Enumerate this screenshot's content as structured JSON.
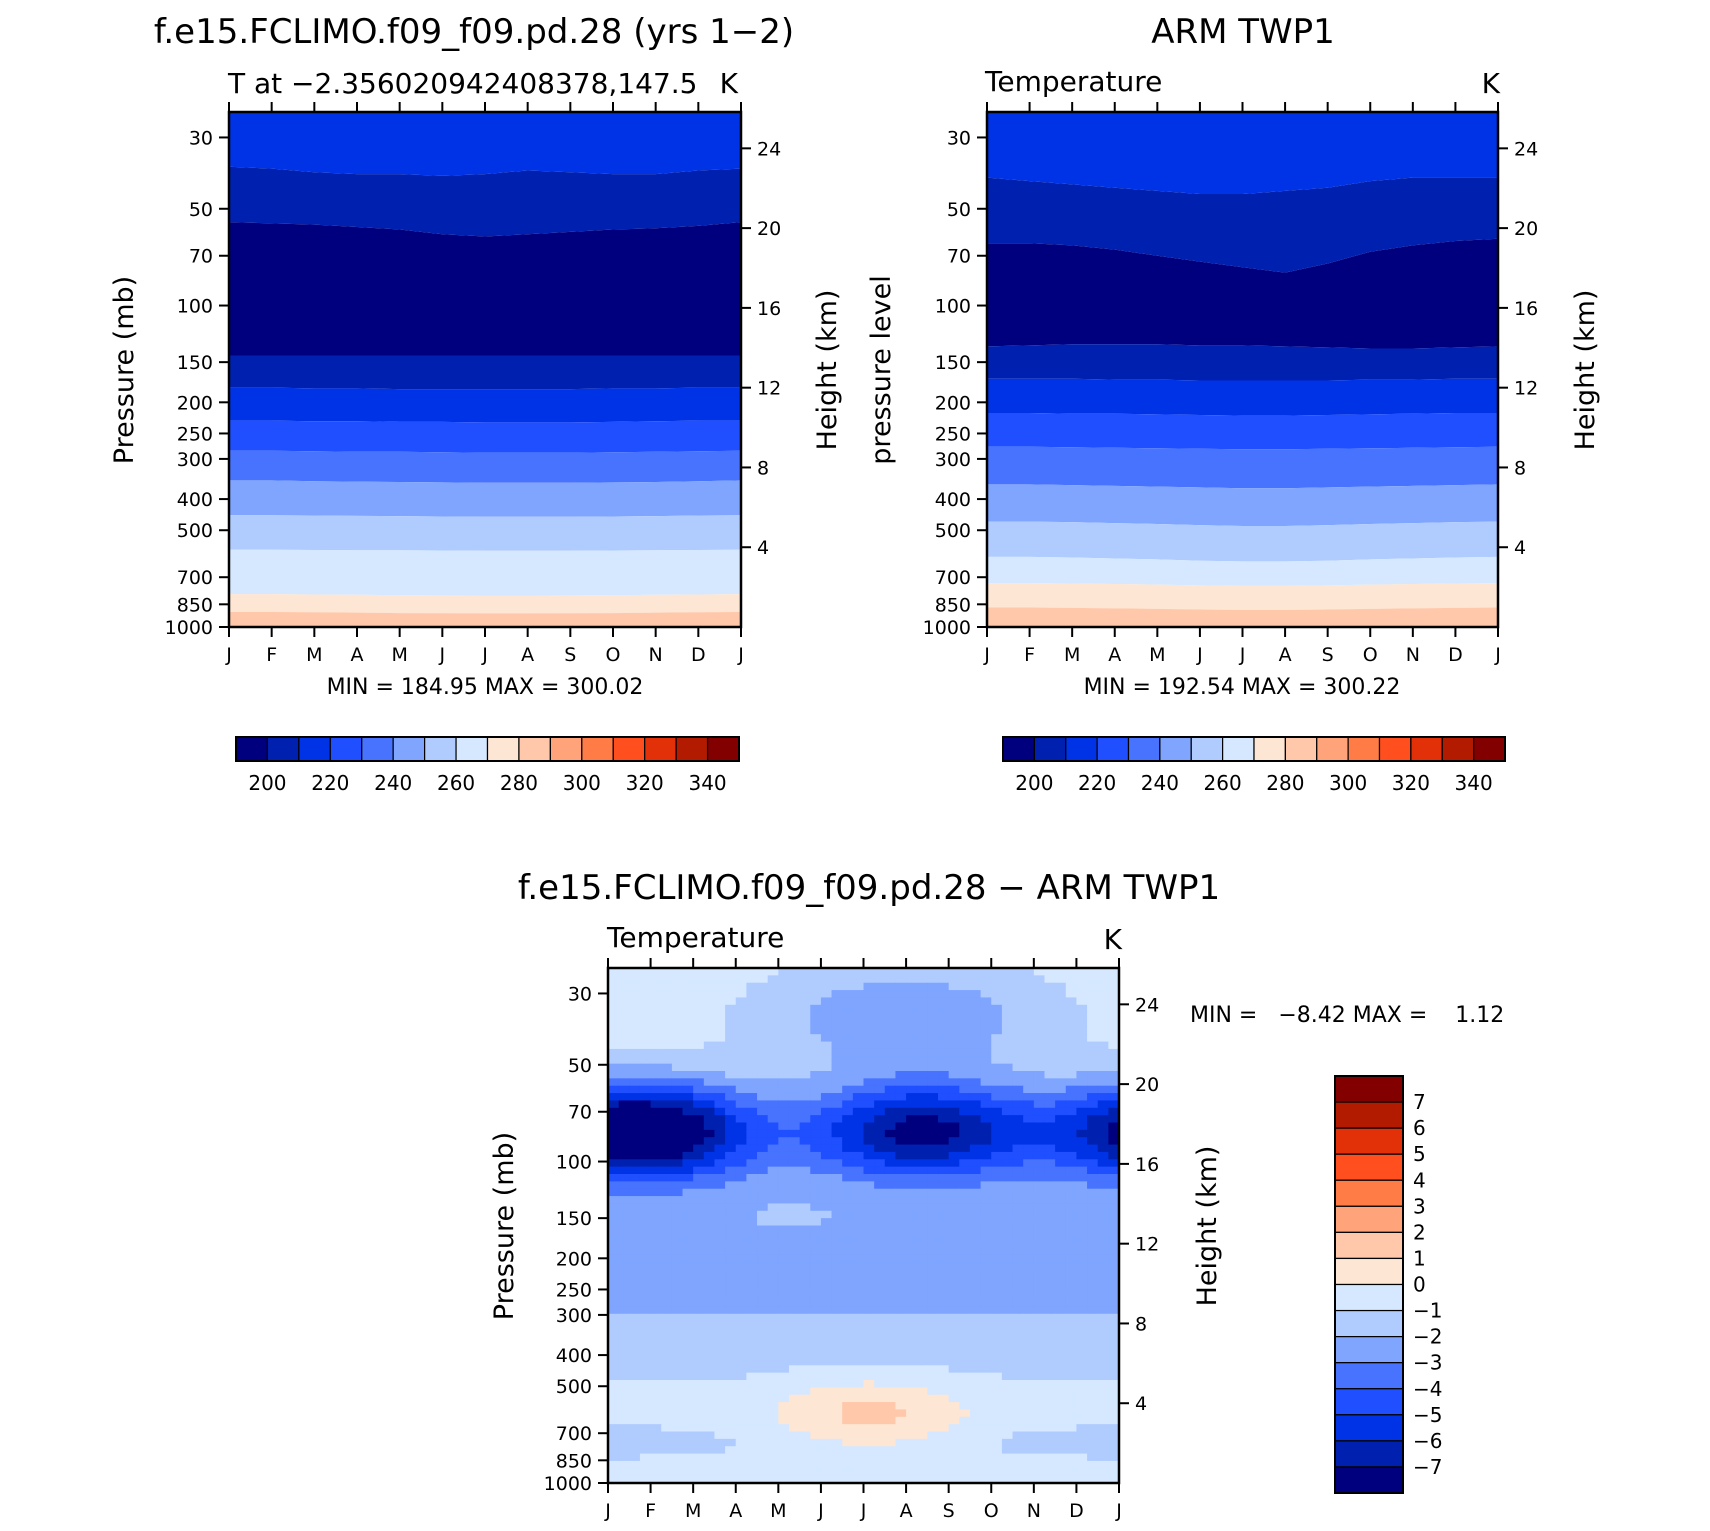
{
  "colors": {
    "abs_scale": [
      "#00007f",
      "#0021b0",
      "#0033e6",
      "#1f4fff",
      "#4773ff",
      "#7fa5ff",
      "#b0ccff",
      "#d5e8ff",
      "#fde6d3",
      "#ffc8aa",
      "#ffa37b",
      "#ff7c47",
      "#ff4f1f",
      "#e23008",
      "#b31b00",
      "#820000"
    ],
    "diff_scale": [
      "#00007f",
      "#0021b0",
      "#0033e6",
      "#1f4fff",
      "#4773ff",
      "#7fa5ff",
      "#b0ccff",
      "#d5e8ff",
      "#fde6d3",
      "#ffc8aa",
      "#ffa37b",
      "#ff7c47",
      "#ff4f1f",
      "#e23008",
      "#b31b00",
      "#820000"
    ]
  },
  "panels": {
    "model": {
      "title": "f.e15.FCLIMO.f09_f09.pd.28 (yrs 1−2)",
      "left_label": "T at −2.356020942408378,147.5",
      "right_label": "K",
      "ylabel": "Pressure (mb)",
      "y2label": "Height (km)",
      "stats": "MIN = 184.95 MAX = 300.02"
    },
    "obs": {
      "title": "ARM TWP1",
      "left_label": "Temperature",
      "right_label": "K",
      "ylabel": "pressure level",
      "y2label": "Height (km)",
      "stats": "MIN = 192.54 MAX = 300.22"
    },
    "diff": {
      "title": "f.e15.FCLIMO.f09_f09.pd.28 − ARM TWP1",
      "left_label": "Temperature",
      "right_label": "K",
      "ylabel": "Pressure (mb)",
      "y2label": "Height (km)",
      "stats": "MIN =   −8.42 MAX =    1.12"
    }
  },
  "chart_data": [
    {
      "type": "heatmap",
      "title": "f.e15.FCLIMO.f09_f09.pd.28 (yrs 1−2)",
      "subtitle": "T at −2.356020942408378,147.5",
      "units": "K",
      "x": [
        "J",
        "F",
        "M",
        "A",
        "M",
        "J",
        "J",
        "A",
        "S",
        "O",
        "N",
        "D",
        "J"
      ],
      "y_pressure_ticks": [
        30,
        50,
        70,
        100,
        150,
        200,
        250,
        300,
        400,
        500,
        700,
        850,
        1000
      ],
      "y_height_ticks": [
        24,
        20,
        16,
        12,
        8,
        4
      ],
      "ylim_pressure": [
        25,
        1000
      ],
      "contour_levels": [
        200,
        210,
        220,
        230,
        240,
        250,
        260,
        270,
        280,
        290,
        300,
        310,
        320,
        330,
        340
      ],
      "colorbar_labels": [
        "200",
        "220",
        "240",
        "260",
        "280",
        "300",
        "320",
        "340"
      ],
      "band_boundaries_mb": [
        [
          37,
          37.5,
          38.5,
          39,
          39,
          39.5,
          39,
          38,
          38.5,
          39,
          39,
          38,
          37.5
        ],
        [
          55,
          55.5,
          56,
          57,
          58,
          60,
          61,
          60,
          59,
          58,
          57.5,
          56.5,
          55
        ],
        [
          143,
          143,
          143,
          143,
          143,
          143,
          143,
          143,
          143,
          143,
          143,
          143,
          143
        ],
        [
          180,
          180,
          181,
          181,
          182,
          182,
          182,
          182,
          182,
          181,
          181,
          180,
          180
        ],
        [
          228,
          228,
          229,
          229,
          230,
          230,
          231,
          231,
          231,
          230,
          229,
          228,
          228
        ],
        [
          283,
          283,
          284,
          285,
          285,
          286,
          287,
          287,
          287,
          286,
          285,
          284,
          283
        ],
        [
          350,
          350,
          352,
          353,
          354,
          355,
          356,
          356,
          356,
          355,
          354,
          352,
          350
        ],
        [
          449,
          449,
          450,
          451,
          452,
          453,
          454,
          454,
          454,
          453,
          452,
          450,
          449
        ],
        [
          575,
          575,
          576,
          577,
          577,
          578,
          579,
          579,
          579,
          578,
          577,
          576,
          575
        ],
        [
          790,
          790,
          792,
          794,
          796,
          797,
          798,
          798,
          797,
          796,
          794,
          792,
          790
        ],
        [
          898,
          898,
          900,
          902,
          905,
          906,
          907,
          907,
          906,
          905,
          902,
          900,
          898
        ]
      ],
      "stats": {
        "min": 184.95,
        "max": 300.02
      }
    },
    {
      "type": "heatmap",
      "title": "ARM TWP1",
      "subtitle": "Temperature",
      "units": "K",
      "x": [
        "J",
        "F",
        "M",
        "A",
        "M",
        "J",
        "J",
        "A",
        "S",
        "O",
        "N",
        "D",
        "J"
      ],
      "y_pressure_ticks": [
        30,
        50,
        70,
        100,
        150,
        200,
        250,
        300,
        400,
        500,
        700,
        850,
        1000
      ],
      "y_height_ticks": [
        24,
        20,
        16,
        12,
        8,
        4
      ],
      "ylim_pressure": [
        25,
        1000
      ],
      "contour_levels": [
        200,
        210,
        220,
        230,
        240,
        250,
        260,
        270,
        280,
        290,
        300,
        310,
        320,
        330,
        340
      ],
      "colorbar_labels": [
        "200",
        "220",
        "240",
        "260",
        "280",
        "300",
        "320",
        "340"
      ],
      "band_boundaries_mb": [
        [
          40,
          41,
          42,
          43,
          44,
          45,
          45,
          44,
          43,
          41,
          40,
          40,
          40
        ],
        [
          64,
          64,
          65,
          67,
          70,
          73,
          76,
          79,
          74,
          68,
          65,
          63,
          62
        ],
        [
          134,
          133,
          132,
          132,
          132,
          133,
          133,
          134,
          135,
          136,
          136,
          135,
          134
        ],
        [
          169,
          169,
          169,
          170,
          170,
          171,
          171,
          171,
          171,
          170,
          170,
          169,
          169
        ],
        [
          216,
          216,
          217,
          217,
          218,
          219,
          220,
          220,
          219,
          218,
          217,
          216,
          216
        ],
        [
          275,
          275,
          276,
          277,
          278,
          279,
          280,
          280,
          279,
          278,
          277,
          276,
          275
        ],
        [
          360,
          360,
          362,
          364,
          366,
          368,
          370,
          370,
          368,
          366,
          364,
          362,
          360
        ],
        [
          470,
          470,
          472,
          475,
          478,
          482,
          485,
          485,
          482,
          478,
          475,
          472,
          470
        ],
        [
          605,
          605,
          608,
          612,
          616,
          622,
          625,
          625,
          622,
          616,
          612,
          608,
          605
        ],
        [
          730,
          730,
          732,
          735,
          738,
          742,
          745,
          745,
          742,
          738,
          735,
          732,
          730
        ],
        [
          870,
          870,
          872,
          875,
          878,
          882,
          885,
          885,
          882,
          878,
          875,
          872,
          870
        ]
      ],
      "stats": {
        "min": 192.54,
        "max": 300.22
      }
    },
    {
      "type": "heatmap",
      "title": "f.e15.FCLIMO.f09_f09.pd.28 − ARM TWP1",
      "subtitle": "Temperature",
      "units": "K",
      "x": [
        "J",
        "F",
        "M",
        "A",
        "M",
        "J",
        "J",
        "A",
        "S",
        "O",
        "N",
        "D",
        "J"
      ],
      "y_pressure_ticks": [
        30,
        50,
        70,
        100,
        150,
        200,
        250,
        300,
        400,
        500,
        700,
        850,
        1000
      ],
      "y_height_ticks": [
        24,
        20,
        16,
        12,
        8,
        4
      ],
      "ylim_pressure": [
        25,
        1000
      ],
      "contour_levels": [
        -7,
        -6,
        -5,
        -4,
        -3,
        -2,
        -1,
        0,
        1,
        2,
        3,
        4,
        5,
        6,
        7
      ],
      "colorbar_labels": [
        "7",
        "6",
        "5",
        "4",
        "3",
        "2",
        "1",
        "0",
        "−1",
        "−2",
        "−3",
        "−4",
        "−5",
        "−6",
        "−7"
      ],
      "stats": {
        "min": -8.42,
        "max": 1.12
      }
    }
  ]
}
